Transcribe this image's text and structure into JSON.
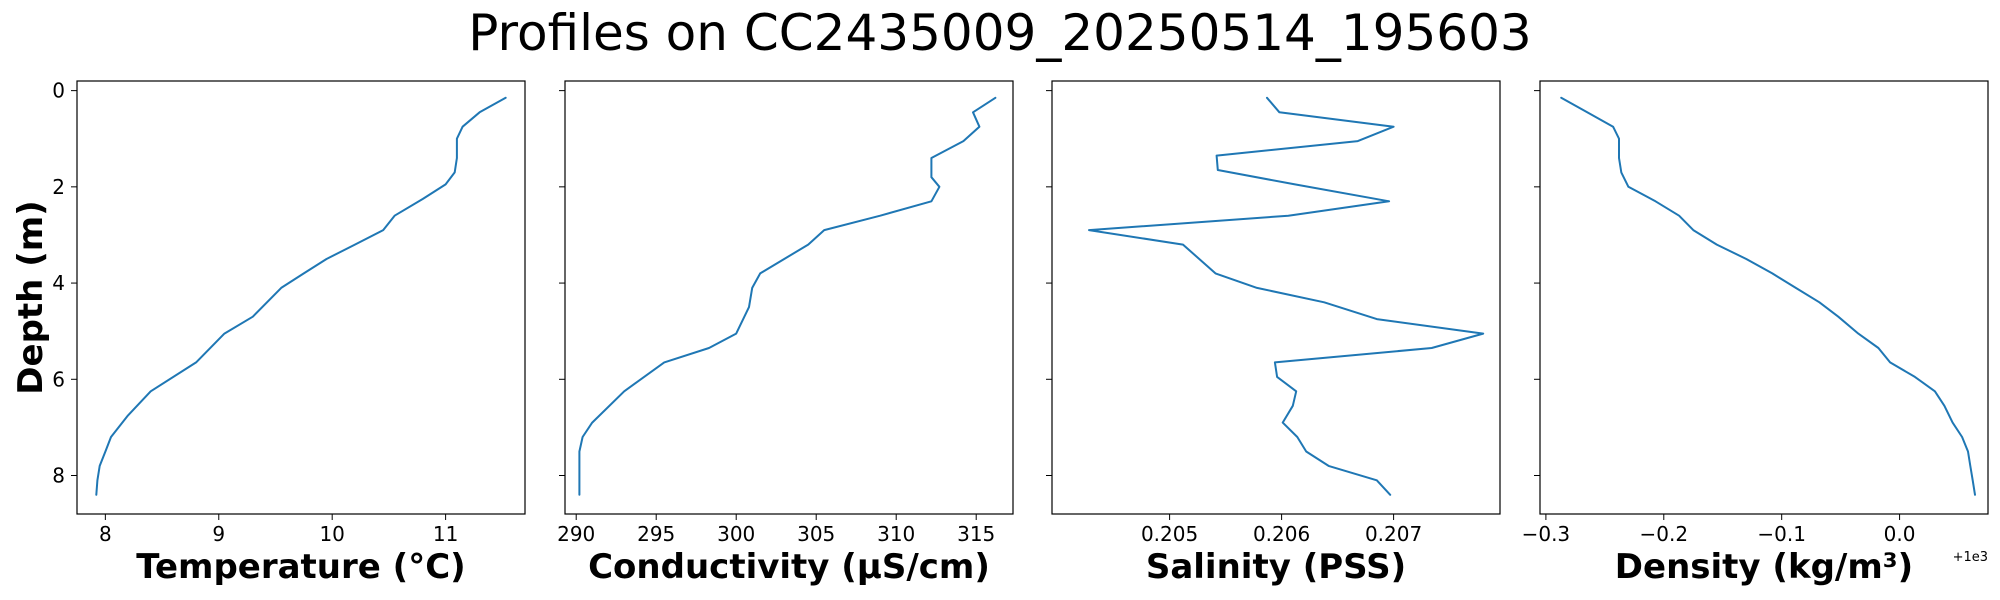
{
  "title": "Profiles on CC2435009_20250514_195603",
  "chart_data": [
    {
      "type": "line",
      "xlabel": "Temperature (°C)",
      "ylabel": "Depth (m)",
      "xlim": [
        7.75,
        11.7
      ],
      "xticks": [
        8,
        9,
        10,
        11
      ],
      "xtick_labels": [
        "8",
        "9",
        "10",
        "11"
      ],
      "ylim": [
        8.8,
        -0.2
      ],
      "yticks": [
        0,
        2,
        4,
        6,
        8
      ],
      "ytick_labels": [
        "0",
        "2",
        "4",
        "6",
        "8"
      ],
      "grid": false,
      "series": [
        {
          "color": "#1f77b4",
          "points": [
            [
              11.53,
              0.15
            ],
            [
              11.3,
              0.45
            ],
            [
              11.15,
              0.75
            ],
            [
              11.1,
              1.0
            ],
            [
              11.1,
              1.4
            ],
            [
              11.08,
              1.7
            ],
            [
              11.0,
              1.95
            ],
            [
              10.8,
              2.25
            ],
            [
              10.55,
              2.6
            ],
            [
              10.45,
              2.9
            ],
            [
              10.2,
              3.2
            ],
            [
              9.95,
              3.5
            ],
            [
              9.75,
              3.8
            ],
            [
              9.55,
              4.1
            ],
            [
              9.3,
              4.7
            ],
            [
              9.05,
              5.05
            ],
            [
              8.8,
              5.65
            ],
            [
              8.4,
              6.25
            ],
            [
              8.2,
              6.75
            ],
            [
              8.05,
              7.2
            ],
            [
              8.0,
              7.5
            ],
            [
              7.95,
              7.8
            ],
            [
              7.93,
              8.1
            ],
            [
              7.92,
              8.4
            ]
          ]
        }
      ]
    },
    {
      "type": "line",
      "xlabel": "Conductivity (µS/cm)",
      "xlim": [
        289.3,
        317.3
      ],
      "xticks": [
        290,
        295,
        300,
        305,
        310,
        315
      ],
      "xtick_labels": [
        "290",
        "295",
        "300",
        "305",
        "310",
        "315"
      ],
      "ylim": [
        8.8,
        -0.2
      ],
      "yticks": [
        0,
        2,
        4,
        6,
        8
      ],
      "grid": false,
      "series": [
        {
          "color": "#1f77b4",
          "points": [
            [
              316.2,
              0.15
            ],
            [
              314.8,
              0.45
            ],
            [
              315.2,
              0.75
            ],
            [
              314.2,
              1.05
            ],
            [
              312.2,
              1.4
            ],
            [
              312.2,
              1.8
            ],
            [
              312.7,
              2.0
            ],
            [
              312.2,
              2.3
            ],
            [
              309.0,
              2.6
            ],
            [
              305.5,
              2.9
            ],
            [
              304.5,
              3.2
            ],
            [
              303.0,
              3.5
            ],
            [
              301.5,
              3.8
            ],
            [
              301.0,
              4.1
            ],
            [
              300.8,
              4.5
            ],
            [
              300.0,
              5.05
            ],
            [
              298.3,
              5.35
            ],
            [
              295.5,
              5.65
            ],
            [
              293.0,
              6.25
            ],
            [
              291.0,
              6.9
            ],
            [
              290.4,
              7.2
            ],
            [
              290.2,
              7.5
            ],
            [
              290.2,
              8.0
            ],
            [
              290.2,
              8.4
            ]
          ]
        }
      ]
    },
    {
      "type": "line",
      "xlabel": "Salinity (PSS)",
      "xlim": [
        0.20395,
        0.20795
      ],
      "xticks": [
        0.205,
        0.206,
        0.207
      ],
      "xtick_labels": [
        "0.205",
        "0.206",
        "0.207"
      ],
      "ylim": [
        8.8,
        -0.2
      ],
      "yticks": [
        0,
        2,
        4,
        6,
        8
      ],
      "grid": false,
      "series": [
        {
          "color": "#1f77b4",
          "points": [
            [
              0.20587,
              0.15
            ],
            [
              0.20598,
              0.45
            ],
            [
              0.207,
              0.75
            ],
            [
              0.20668,
              1.05
            ],
            [
              0.20542,
              1.35
            ],
            [
              0.20543,
              1.65
            ],
            [
              0.20612,
              1.95
            ],
            [
              0.20696,
              2.3
            ],
            [
              0.20606,
              2.6
            ],
            [
              0.20428,
              2.9
            ],
            [
              0.20512,
              3.2
            ],
            [
              0.20541,
              3.8
            ],
            [
              0.20578,
              4.1
            ],
            [
              0.20638,
              4.4
            ],
            [
              0.20685,
              4.75
            ],
            [
              0.2078,
              5.05
            ],
            [
              0.20734,
              5.35
            ],
            [
              0.20594,
              5.65
            ],
            [
              0.20596,
              5.95
            ],
            [
              0.20613,
              6.25
            ],
            [
              0.2061,
              6.55
            ],
            [
              0.20601,
              6.9
            ],
            [
              0.20614,
              7.2
            ],
            [
              0.20622,
              7.5
            ],
            [
              0.20642,
              7.8
            ],
            [
              0.20685,
              8.1
            ],
            [
              0.20697,
              8.4
            ]
          ]
        }
      ]
    },
    {
      "type": "line",
      "xlabel": "Density (kg/m³)",
      "offset_label": "+1e3",
      "xlim": [
        -0.305,
        0.075
      ],
      "xticks": [
        -0.3,
        -0.2,
        -0.1,
        0.0
      ],
      "xtick_labels": [
        "−0.3",
        "−0.2",
        "−0.1",
        "0.0"
      ],
      "ylim": [
        8.8,
        -0.2
      ],
      "yticks": [
        0,
        2,
        4,
        6,
        8
      ],
      "grid": false,
      "series": [
        {
          "color": "#1f77b4",
          "points": [
            [
              -0.287,
              0.15
            ],
            [
              -0.265,
              0.45
            ],
            [
              -0.243,
              0.75
            ],
            [
              -0.238,
              1.0
            ],
            [
              -0.238,
              1.4
            ],
            [
              -0.236,
              1.7
            ],
            [
              -0.23,
              2.0
            ],
            [
              -0.207,
              2.3
            ],
            [
              -0.187,
              2.6
            ],
            [
              -0.175,
              2.9
            ],
            [
              -0.155,
              3.2
            ],
            [
              -0.13,
              3.5
            ],
            [
              -0.108,
              3.8
            ],
            [
              -0.088,
              4.1
            ],
            [
              -0.068,
              4.4
            ],
            [
              -0.052,
              4.7
            ],
            [
              -0.035,
              5.05
            ],
            [
              -0.018,
              5.35
            ],
            [
              -0.008,
              5.65
            ],
            [
              0.013,
              5.95
            ],
            [
              0.03,
              6.25
            ],
            [
              0.038,
              6.55
            ],
            [
              0.045,
              6.9
            ],
            [
              0.053,
              7.2
            ],
            [
              0.058,
              7.5
            ],
            [
              0.06,
              7.8
            ],
            [
              0.062,
              8.1
            ],
            [
              0.064,
              8.4
            ]
          ]
        }
      ]
    }
  ]
}
